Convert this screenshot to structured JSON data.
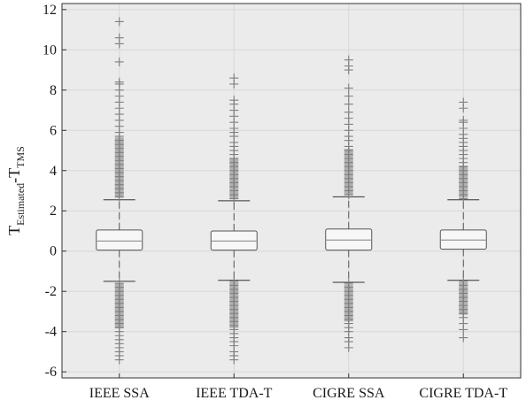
{
  "chart_data": {
    "type": "box",
    "title": "",
    "xlabel": "",
    "ylabel": {
      "parts": [
        "T",
        "Estimated",
        "-T",
        "TMS"
      ]
    },
    "ylim": [
      -6.3,
      12.3
    ],
    "yticks": [
      -6,
      -4,
      -2,
      0,
      2,
      4,
      6,
      8,
      10,
      12
    ],
    "ytick_labels": [
      "-6",
      "-4",
      "-2",
      "0",
      "2",
      "4",
      "6",
      "8",
      "10",
      "12"
    ],
    "grid": true,
    "categories": [
      "IEEE SSA",
      "IEEE TDA-T",
      "CIGRE SSA",
      "CIGRE TDA-T"
    ],
    "boxes": [
      {
        "category": "IEEE SSA",
        "q1": 0.05,
        "median": 0.5,
        "q3": 1.05,
        "whisker_low": -1.5,
        "whisker_high": 2.55,
        "outliers_low": [
          -1.6,
          -1.8,
          -2.0,
          -2.2,
          -2.4,
          -2.6,
          -2.8,
          -3.0,
          -3.2,
          -3.4,
          -3.6,
          -3.8,
          -4.0,
          -4.2,
          -4.4,
          -4.6,
          -4.8,
          -5.0,
          -5.2,
          -5.4
        ],
        "outliers_high": [
          2.7,
          2.9,
          3.1,
          3.3,
          3.5,
          3.7,
          3.9,
          4.1,
          4.3,
          4.5,
          4.7,
          4.9,
          5.1,
          5.3,
          5.5,
          5.7,
          5.9,
          6.2,
          6.5,
          6.8,
          7.1,
          7.4,
          7.7,
          8.0,
          8.3,
          8.4,
          9.4,
          10.3,
          10.6,
          11.4
        ]
      },
      {
        "category": "IEEE TDA-T",
        "q1": 0.05,
        "median": 0.5,
        "q3": 1.0,
        "whisker_low": -1.45,
        "whisker_high": 2.5,
        "outliers_low": [
          -1.5,
          -1.7,
          -1.9,
          -2.1,
          -2.3,
          -2.5,
          -2.7,
          -2.9,
          -3.1,
          -3.3,
          -3.5,
          -3.7,
          -3.9,
          -4.1,
          -4.3,
          -4.5,
          -4.7,
          -5.0,
          -5.2,
          -5.4
        ],
        "outliers_high": [
          2.6,
          2.8,
          3.0,
          3.2,
          3.4,
          3.6,
          3.8,
          4.0,
          4.2,
          4.4,
          4.6,
          4.8,
          5.0,
          5.2,
          5.4,
          5.7,
          5.9,
          6.1,
          6.4,
          6.7,
          7.0,
          7.3,
          7.5,
          8.3,
          8.6
        ]
      },
      {
        "category": "CIGRE SSA",
        "q1": 0.05,
        "median": 0.55,
        "q3": 1.1,
        "whisker_low": -1.55,
        "whisker_high": 2.7,
        "outliers_low": [
          -1.6,
          -1.8,
          -2.0,
          -2.2,
          -2.4,
          -2.6,
          -2.8,
          -3.0,
          -3.2,
          -3.4,
          -3.6,
          -3.8,
          -4.0,
          -4.3,
          -4.5,
          -4.8
        ],
        "outliers_high": [
          2.8,
          3.0,
          3.2,
          3.4,
          3.6,
          3.8,
          4.0,
          4.2,
          4.4,
          4.6,
          4.8,
          5.0,
          5.2,
          5.5,
          5.7,
          6.0,
          6.3,
          6.6,
          6.9,
          7.3,
          7.7,
          8.1,
          9.0,
          9.2,
          9.5
        ]
      },
      {
        "category": "CIGRE TDA-T",
        "q1": 0.1,
        "median": 0.55,
        "q3": 1.05,
        "whisker_low": -1.45,
        "whisker_high": 2.55,
        "outliers_low": [
          -1.5,
          -1.7,
          -1.9,
          -2.1,
          -2.3,
          -2.5,
          -2.7,
          -2.9,
          -3.1,
          -3.3,
          -3.6,
          -3.9,
          -4.3
        ],
        "outliers_high": [
          2.6,
          2.8,
          3.0,
          3.2,
          3.4,
          3.6,
          3.8,
          4.0,
          4.2,
          4.4,
          4.6,
          4.8,
          5.0,
          5.2,
          5.4,
          5.6,
          5.8,
          6.1,
          6.4,
          6.5,
          7.1,
          7.4
        ]
      }
    ],
    "colors": {
      "plot_background": "#ebebeb",
      "grid": "#d7d7d7",
      "axis": "#333333",
      "box": "#555555",
      "median": "#999999",
      "outlier": "#7f7f7f"
    }
  }
}
